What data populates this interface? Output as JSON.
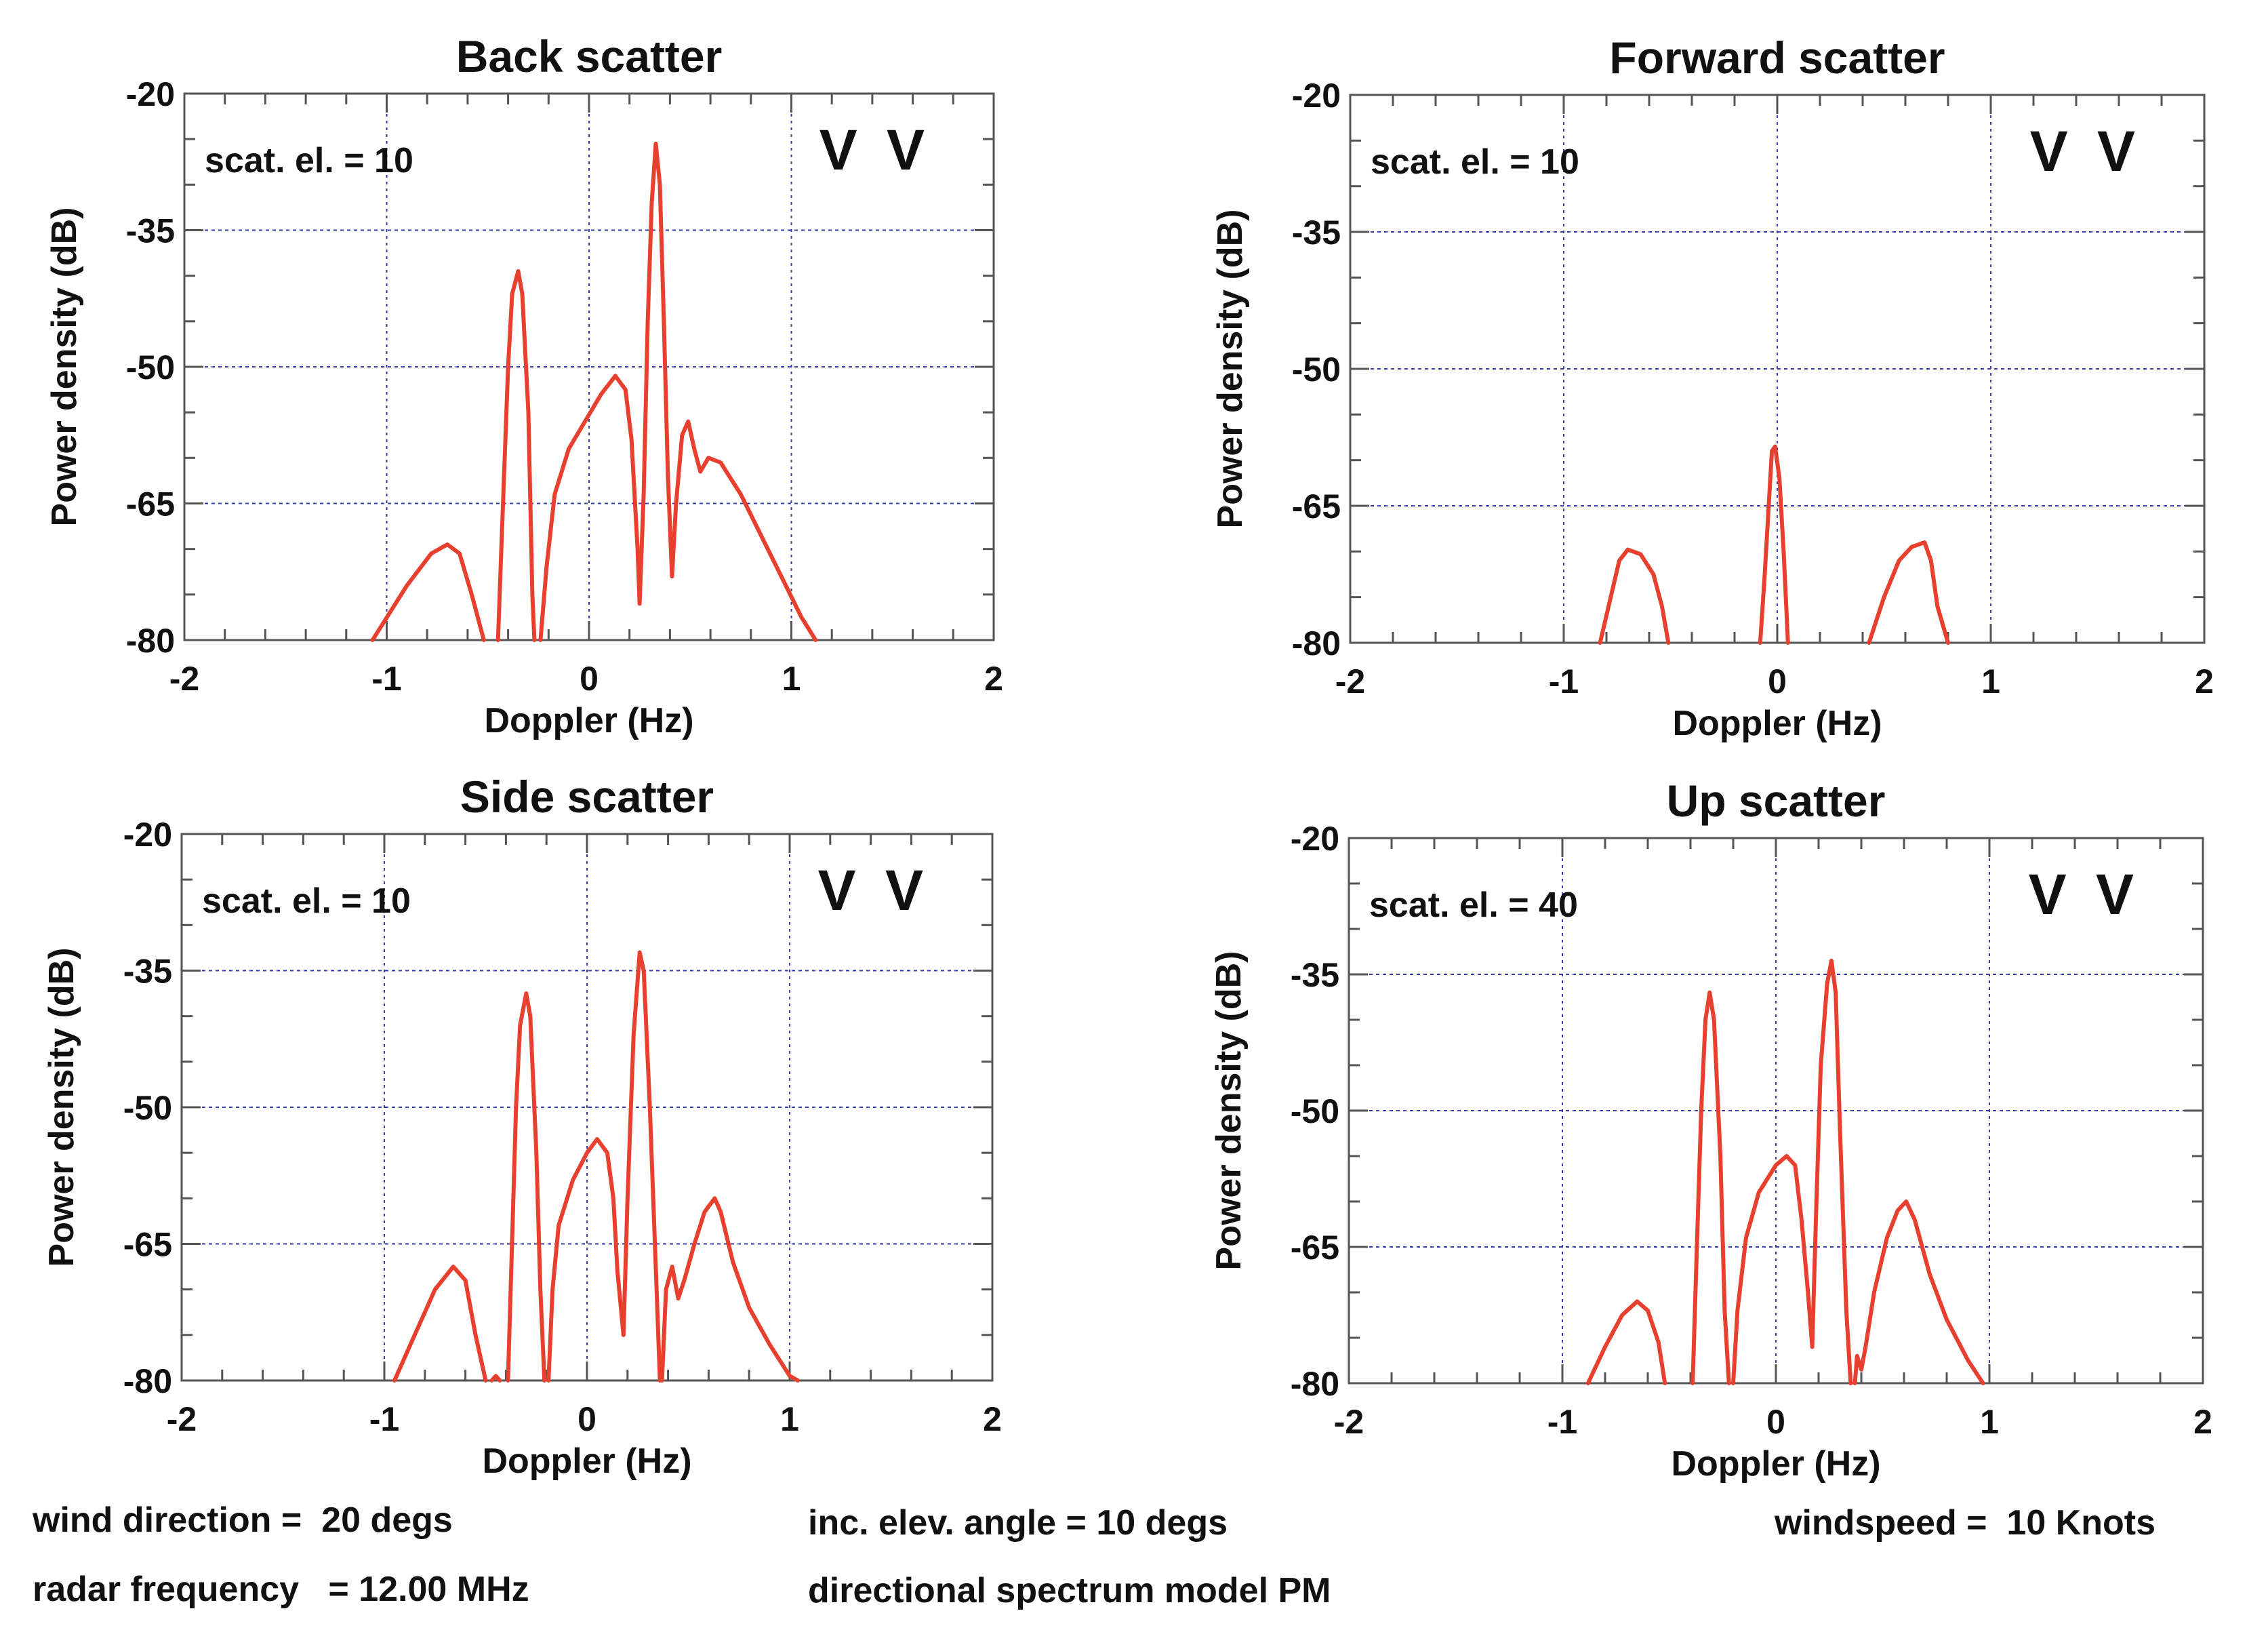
{
  "colors": {
    "curve": "#e8402e",
    "grid": "#3a3aa8",
    "frame": "#555555"
  },
  "chart_data": [
    {
      "type": "line",
      "title": "Back scatter",
      "xlabel": "Doppler (Hz)",
      "ylabel": "Power density (dB)",
      "xlim": [
        -2,
        2
      ],
      "ylim": [
        -80,
        -20
      ],
      "xticks": [
        -2,
        -1,
        0,
        1,
        2
      ],
      "yticks": [
        -20,
        -35,
        -50,
        -65,
        -80
      ],
      "annotation": "scat. el. = 10",
      "polarization": "V V",
      "segments": [
        [
          [
            -1.07,
            -80
          ],
          [
            -0.9,
            -74
          ],
          [
            -0.78,
            -70.5
          ],
          [
            -0.7,
            -69.5
          ],
          [
            -0.64,
            -70.5
          ],
          [
            -0.58,
            -75
          ],
          [
            -0.52,
            -80
          ]
        ],
        [
          [
            -0.45,
            -80
          ],
          [
            -0.43,
            -68
          ],
          [
            -0.4,
            -50
          ],
          [
            -0.38,
            -42
          ],
          [
            -0.35,
            -39.5
          ],
          [
            -0.33,
            -42
          ],
          [
            -0.3,
            -55
          ],
          [
            -0.28,
            -75
          ],
          [
            -0.27,
            -80
          ]
        ],
        [
          [
            -0.24,
            -80
          ],
          [
            -0.21,
            -72
          ],
          [
            -0.17,
            -64
          ],
          [
            -0.1,
            -59
          ],
          [
            -0.02,
            -56
          ],
          [
            0.06,
            -53
          ],
          [
            0.13,
            -51
          ],
          [
            0.18,
            -52.5
          ],
          [
            0.21,
            -58
          ],
          [
            0.24,
            -70
          ],
          [
            0.25,
            -76
          ]
        ],
        [
          [
            0.25,
            -76
          ],
          [
            0.27,
            -64
          ],
          [
            0.29,
            -45
          ],
          [
            0.31,
            -32
          ],
          [
            0.33,
            -25.5
          ],
          [
            0.35,
            -30
          ],
          [
            0.37,
            -45
          ],
          [
            0.39,
            -62
          ],
          [
            0.41,
            -73
          ]
        ],
        [
          [
            0.41,
            -73
          ],
          [
            0.43,
            -65
          ],
          [
            0.46,
            -57.5
          ],
          [
            0.49,
            -56
          ],
          [
            0.52,
            -59
          ],
          [
            0.55,
            -61.5
          ],
          [
            0.59,
            -60
          ],
          [
            0.65,
            -60.5
          ],
          [
            0.75,
            -64
          ],
          [
            0.85,
            -68.5
          ],
          [
            0.95,
            -73
          ],
          [
            1.05,
            -77.5
          ],
          [
            1.12,
            -80
          ]
        ]
      ]
    },
    {
      "type": "line",
      "title": "Forward scatter",
      "xlabel": "Doppler (Hz)",
      "ylabel": "Power density (dB)",
      "xlim": [
        -2,
        2
      ],
      "ylim": [
        -80,
        -20
      ],
      "xticks": [
        -2,
        -1,
        0,
        1,
        2
      ],
      "yticks": [
        -20,
        -35,
        -50,
        -65,
        -80
      ],
      "annotation": "scat. el. = 10",
      "polarization": "V V",
      "segments": [
        [
          [
            -0.83,
            -80
          ],
          [
            -0.78,
            -75
          ],
          [
            -0.74,
            -71
          ],
          [
            -0.7,
            -69.8
          ],
          [
            -0.64,
            -70.3
          ],
          [
            -0.58,
            -72.5
          ],
          [
            -0.54,
            -76
          ],
          [
            -0.51,
            -80
          ]
        ],
        [
          [
            -0.08,
            -80
          ],
          [
            -0.06,
            -73
          ],
          [
            -0.04,
            -65
          ],
          [
            -0.025,
            -59
          ],
          [
            -0.01,
            -58.5
          ],
          [
            0.01,
            -62
          ],
          [
            0.03,
            -70
          ],
          [
            0.05,
            -80
          ]
        ],
        [
          [
            0.43,
            -80
          ],
          [
            0.5,
            -75
          ],
          [
            0.57,
            -71
          ],
          [
            0.63,
            -69.5
          ],
          [
            0.69,
            -69
          ],
          [
            0.72,
            -71
          ],
          [
            0.75,
            -76
          ],
          [
            0.8,
            -80
          ]
        ]
      ]
    },
    {
      "type": "line",
      "title": "Side scatter",
      "xlabel": "Doppler (Hz)",
      "ylabel": "Power density (dB)",
      "xlim": [
        -2,
        2
      ],
      "ylim": [
        -80,
        -20
      ],
      "xticks": [
        -2,
        -1,
        0,
        1,
        2
      ],
      "yticks": [
        -20,
        -35,
        -50,
        -65,
        -80
      ],
      "annotation": "scat. el. = 10",
      "polarization": "V V",
      "segments": [
        [
          [
            -0.95,
            -80
          ],
          [
            -0.85,
            -75
          ],
          [
            -0.75,
            -70
          ],
          [
            -0.66,
            -67.5
          ],
          [
            -0.6,
            -69
          ],
          [
            -0.55,
            -75
          ],
          [
            -0.5,
            -80
          ]
        ],
        [
          [
            -0.47,
            -80
          ],
          [
            -0.45,
            -79.5
          ],
          [
            -0.43,
            -80
          ]
        ],
        [
          [
            -0.39,
            -80
          ],
          [
            -0.37,
            -65
          ],
          [
            -0.35,
            -50
          ],
          [
            -0.33,
            -41
          ],
          [
            -0.3,
            -37.5
          ],
          [
            -0.28,
            -40
          ],
          [
            -0.25,
            -55
          ],
          [
            -0.23,
            -70
          ],
          [
            -0.21,
            -80
          ]
        ],
        [
          [
            -0.19,
            -80
          ],
          [
            -0.17,
            -70
          ],
          [
            -0.14,
            -63
          ],
          [
            -0.07,
            -58
          ],
          [
            0.0,
            -55
          ],
          [
            0.05,
            -53.5
          ],
          [
            0.1,
            -55
          ],
          [
            0.13,
            -60
          ],
          [
            0.15,
            -68
          ],
          [
            0.18,
            -75
          ]
        ],
        [
          [
            0.18,
            -75
          ],
          [
            0.2,
            -60
          ],
          [
            0.23,
            -42
          ],
          [
            0.26,
            -33
          ],
          [
            0.28,
            -35
          ],
          [
            0.31,
            -50
          ],
          [
            0.34,
            -68
          ],
          [
            0.36,
            -80
          ]
        ],
        [
          [
            0.37,
            -80
          ],
          [
            0.39,
            -70
          ],
          [
            0.42,
            -67.5
          ],
          [
            0.45,
            -71
          ],
          [
            0.48,
            -69
          ],
          [
            0.53,
            -65
          ],
          [
            0.58,
            -61.5
          ],
          [
            0.63,
            -60
          ],
          [
            0.66,
            -61.5
          ],
          [
            0.72,
            -67
          ],
          [
            0.8,
            -72
          ],
          [
            0.9,
            -76
          ],
          [
            1.0,
            -79.5
          ],
          [
            1.04,
            -80
          ]
        ]
      ]
    },
    {
      "type": "line",
      "title": "Up scatter",
      "xlabel": "Doppler (Hz)",
      "ylabel": "Power density (dB)",
      "xlim": [
        -2,
        2
      ],
      "ylim": [
        -80,
        -20
      ],
      "xticks": [
        -2,
        -1,
        0,
        1,
        2
      ],
      "yticks": [
        -20,
        -35,
        -50,
        -65,
        -80
      ],
      "annotation": "scat. el. = 40",
      "polarization": "V V",
      "segments": [
        [
          [
            -0.88,
            -80
          ],
          [
            -0.8,
            -76
          ],
          [
            -0.72,
            -72.5
          ],
          [
            -0.65,
            -71
          ],
          [
            -0.6,
            -72
          ],
          [
            -0.55,
            -75.5
          ],
          [
            -0.52,
            -80
          ]
        ],
        [
          [
            -0.39,
            -80
          ],
          [
            -0.37,
            -65
          ],
          [
            -0.35,
            -50
          ],
          [
            -0.33,
            -40
          ],
          [
            -0.31,
            -37
          ],
          [
            -0.29,
            -40
          ],
          [
            -0.26,
            -55
          ],
          [
            -0.24,
            -72
          ],
          [
            -0.22,
            -80
          ]
        ],
        [
          [
            -0.2,
            -80
          ],
          [
            -0.18,
            -72
          ],
          [
            -0.14,
            -64
          ],
          [
            -0.08,
            -59
          ],
          [
            0.0,
            -56
          ],
          [
            0.05,
            -55
          ],
          [
            0.09,
            -56
          ],
          [
            0.12,
            -62
          ],
          [
            0.15,
            -70
          ],
          [
            0.17,
            -76
          ]
        ],
        [
          [
            0.17,
            -76
          ],
          [
            0.19,
            -60
          ],
          [
            0.21,
            -45
          ],
          [
            0.24,
            -36
          ],
          [
            0.26,
            -33.5
          ],
          [
            0.28,
            -37
          ],
          [
            0.3,
            -52
          ],
          [
            0.33,
            -72
          ],
          [
            0.35,
            -80
          ]
        ],
        [
          [
            0.37,
            -80
          ],
          [
            0.38,
            -77
          ],
          [
            0.4,
            -78.5
          ],
          [
            0.42,
            -76
          ],
          [
            0.46,
            -70
          ],
          [
            0.52,
            -64
          ],
          [
            0.57,
            -61
          ],
          [
            0.61,
            -60
          ],
          [
            0.65,
            -62
          ],
          [
            0.72,
            -68
          ],
          [
            0.8,
            -73
          ],
          [
            0.9,
            -77.5
          ],
          [
            0.97,
            -80
          ]
        ]
      ]
    }
  ],
  "footer": {
    "wind_direction": "wind direction =  20 degs",
    "radar_frequency": "radar frequency   = 12.00 MHz",
    "inc_elev_angle": "inc. elev. angle = 10 degs",
    "spectrum_model": "directional spectrum model PM",
    "windspeed": "windspeed =  10 Knots"
  }
}
